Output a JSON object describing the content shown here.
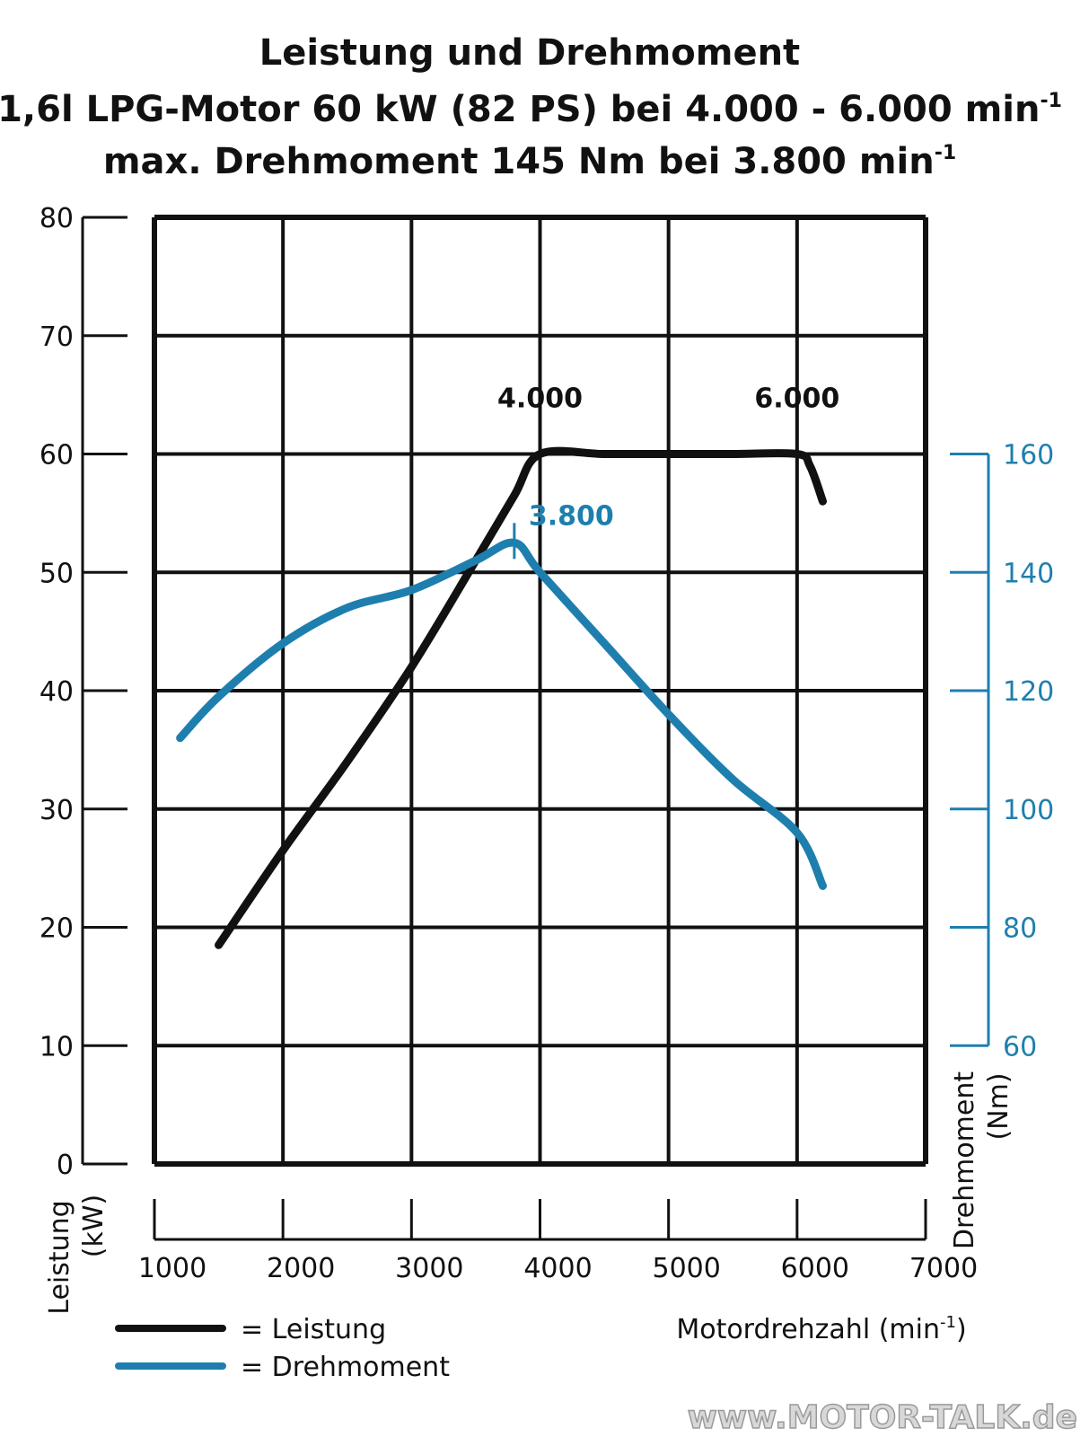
{
  "chart_data": {
    "type": "line",
    "title": {
      "line1": "Leistung und Drehmoment",
      "line2_prefix": "1,6l LPG-Motor 60 kW (82 PS) bei 4.000 - 6.000 min",
      "line3_prefix": "max. Drehmoment 145 Nm bei 3.800 min",
      "superscript": "-1"
    },
    "x_axis": {
      "label_prefix": "Motordrehzahl (min",
      "label_sup": "-1",
      "label_suffix": ")",
      "range": [
        1000,
        7000
      ],
      "ticks": [
        1000,
        2000,
        3000,
        4000,
        5000,
        6000,
        7000
      ],
      "tick_labels": [
        "1000",
        "2000",
        "3000",
        "4000",
        "5000",
        "6000",
        "7000"
      ]
    },
    "y_axis_left": {
      "label_line1": "Leistung",
      "label_line2": "(kW)",
      "range": [
        0,
        80
      ],
      "ticks": [
        0,
        10,
        20,
        30,
        40,
        50,
        60,
        70,
        80
      ],
      "tick_labels": [
        "0",
        "10",
        "20",
        "30",
        "40",
        "50",
        "60",
        "70",
        "80"
      ]
    },
    "y_axis_right": {
      "label_line1": "Drehmoment",
      "label_line2": "(Nm)",
      "range": [
        60,
        160
      ],
      "ticks": [
        60,
        80,
        100,
        120,
        140,
        160
      ],
      "tick_labels": [
        "60",
        "80",
        "100",
        "120",
        "140",
        "160"
      ]
    },
    "grid": true,
    "series": [
      {
        "name": "Leistung",
        "axis": "left",
        "color": "#111111",
        "x": [
          1500,
          2000,
          2500,
          3000,
          3500,
          3800,
          4000,
          4500,
          5000,
          5500,
          6000,
          6100,
          6200
        ],
        "y": [
          18.5,
          26.5,
          34,
          42,
          51,
          56.5,
          60,
          60,
          60,
          60,
          60,
          59,
          56
        ]
      },
      {
        "name": "Drehmoment",
        "axis": "right",
        "color": "#1e7fae",
        "x": [
          1200,
          1500,
          2000,
          2500,
          3000,
          3500,
          3800,
          4000,
          4500,
          5000,
          5500,
          6000,
          6200
        ],
        "y": [
          112,
          119,
          128,
          134,
          137,
          142,
          145,
          140,
          128,
          116,
          105,
          96,
          87
        ]
      }
    ],
    "annotations": [
      {
        "text": "4.000",
        "x": 4000,
        "y": 60,
        "axis": "left",
        "color": "#111111"
      },
      {
        "text": "6.000",
        "x": 6000,
        "y": 60,
        "axis": "left",
        "color": "#111111"
      },
      {
        "text": "3.800",
        "x": 3800,
        "y": 145,
        "axis": "right",
        "color": "#1e7fae"
      }
    ],
    "legend": {
      "placement": "bottom-left",
      "items": [
        {
          "label": "= Leistung",
          "color": "#111111"
        },
        {
          "label": "= Drehmoment",
          "color": "#1e7fae"
        }
      ]
    }
  },
  "watermark": "www.MOTOR-TALK.de"
}
